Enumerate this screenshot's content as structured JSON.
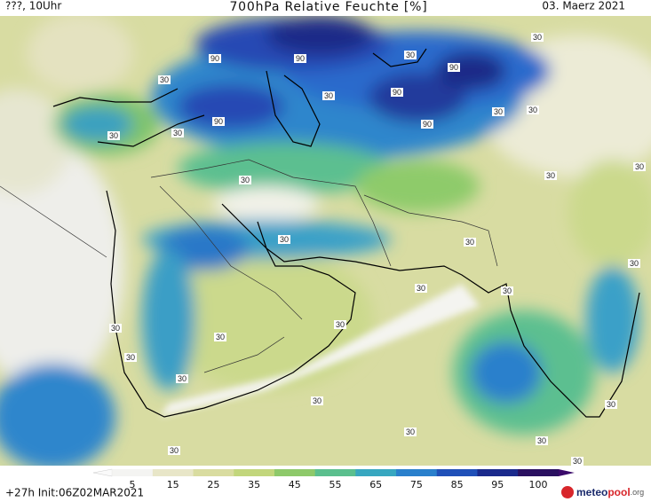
{
  "header": {
    "left": "???, 10Uhr",
    "title": "700hPa Relative Feuchte [%]",
    "right": "03. Maerz 2021"
  },
  "colorbar": {
    "ticks": [
      5,
      15,
      25,
      35,
      45,
      55,
      65,
      75,
      85,
      95,
      100
    ]
  },
  "footer": {
    "run": "+27h Init:06Z02MAR2021",
    "brand": {
      "meteo": "meteo",
      "pool": "pool",
      "org": ".org"
    }
  },
  "contour_labels": [
    "90",
    "90",
    "90",
    "90",
    "90",
    "90",
    "30",
    "30",
    "30",
    "30",
    "30",
    "30",
    "30",
    "30",
    "30",
    "30",
    "30",
    "30",
    "30",
    "30",
    "30",
    "30",
    "30",
    "30",
    "30",
    "30",
    "30",
    "30",
    "30",
    "30",
    "30",
    "30",
    "30"
  ]
}
